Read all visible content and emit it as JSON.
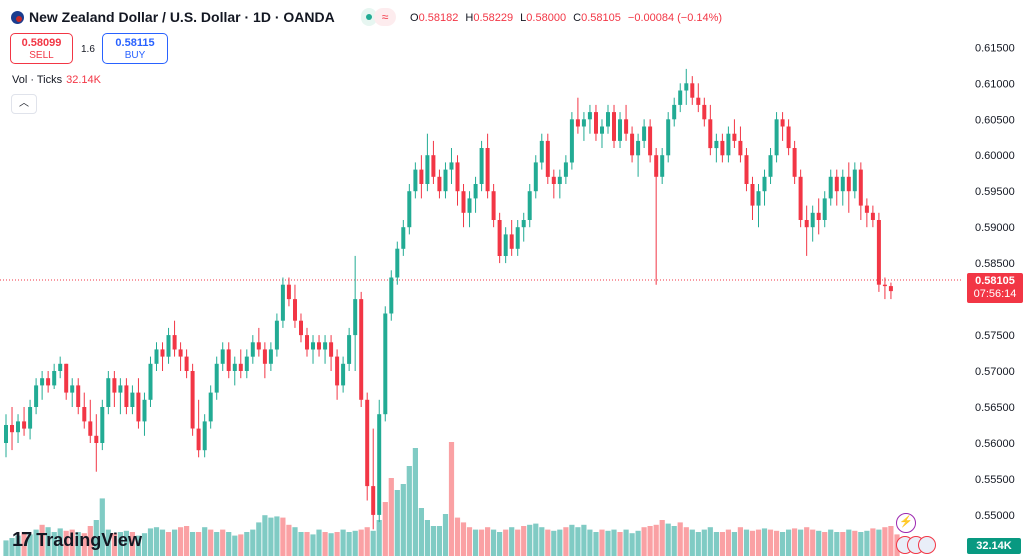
{
  "header": {
    "title": "New Zealand Dollar / U.S. Dollar · 1D · OANDA",
    "ohlc": {
      "o_label": "O",
      "o": "0.58182",
      "h_label": "H",
      "h": "0.58229",
      "l_label": "L",
      "l": "0.58000",
      "c_label": "C",
      "c": "0.58105",
      "change": "−0.00084 (−0.14%)"
    }
  },
  "trade": {
    "sell_price": "0.58099",
    "sell_label": "SELL",
    "spread": "1.6",
    "buy_price": "0.58115",
    "buy_label": "BUY"
  },
  "volume_indicator": {
    "label": "Vol · Ticks",
    "value": "32.14K"
  },
  "last_price": {
    "value": "0.58105",
    "countdown": "07:56:14"
  },
  "volume_axis_label": "32.14K",
  "branding": {
    "name": "TradingView"
  },
  "colors": {
    "up": "#22ab94",
    "down": "#f23645",
    "vol_up": "#80cbc4",
    "vol_down": "#faa1a4"
  },
  "chart_data": {
    "type": "candlestick",
    "y_ticks": [
      "0.61500",
      "0.61000",
      "0.60500",
      "0.60000",
      "0.59500",
      "0.59000",
      "0.58500",
      "0.58000",
      "0.57500",
      "0.57000",
      "0.56500",
      "0.56000",
      "0.55500",
      "0.55000"
    ],
    "ylim": [
      0.5447,
      0.6163
    ],
    "candles": [
      [
        0.56,
        0.564,
        0.558,
        0.5625
      ],
      [
        0.5625,
        0.565,
        0.559,
        0.5615
      ],
      [
        0.5615,
        0.564,
        0.56,
        0.563
      ],
      [
        0.563,
        0.565,
        0.561,
        0.562
      ],
      [
        0.562,
        0.566,
        0.5605,
        0.565
      ],
      [
        0.565,
        0.569,
        0.564,
        0.568
      ],
      [
        0.568,
        0.57,
        0.566,
        0.569
      ],
      [
        0.569,
        0.57,
        0.567,
        0.568
      ],
      [
        0.568,
        0.571,
        0.5675,
        0.57
      ],
      [
        0.57,
        0.572,
        0.569,
        0.571
      ],
      [
        0.571,
        0.571,
        0.566,
        0.567
      ],
      [
        0.567,
        0.569,
        0.565,
        0.568
      ],
      [
        0.568,
        0.569,
        0.564,
        0.565
      ],
      [
        0.565,
        0.567,
        0.562,
        0.563
      ],
      [
        0.563,
        0.566,
        0.56,
        0.561
      ],
      [
        0.561,
        0.564,
        0.556,
        0.56
      ],
      [
        0.56,
        0.566,
        0.559,
        0.565
      ],
      [
        0.565,
        0.57,
        0.564,
        0.569
      ],
      [
        0.569,
        0.57,
        0.565,
        0.567
      ],
      [
        0.567,
        0.569,
        0.564,
        0.568
      ],
      [
        0.568,
        0.569,
        0.564,
        0.565
      ],
      [
        0.565,
        0.568,
        0.564,
        0.567
      ],
      [
        0.567,
        0.569,
        0.562,
        0.563
      ],
      [
        0.563,
        0.567,
        0.561,
        0.566
      ],
      [
        0.566,
        0.572,
        0.565,
        0.571
      ],
      [
        0.571,
        0.574,
        0.57,
        0.573
      ],
      [
        0.573,
        0.574,
        0.57,
        0.572
      ],
      [
        0.572,
        0.576,
        0.571,
        0.575
      ],
      [
        0.575,
        0.577,
        0.572,
        0.573
      ],
      [
        0.573,
        0.574,
        0.57,
        0.572
      ],
      [
        0.572,
        0.573,
        0.569,
        0.57
      ],
      [
        0.57,
        0.571,
        0.561,
        0.562
      ],
      [
        0.562,
        0.566,
        0.558,
        0.559
      ],
      [
        0.559,
        0.564,
        0.558,
        0.563
      ],
      [
        0.563,
        0.568,
        0.562,
        0.567
      ],
      [
        0.567,
        0.572,
        0.566,
        0.571
      ],
      [
        0.571,
        0.574,
        0.57,
        0.573
      ],
      [
        0.573,
        0.574,
        0.569,
        0.57
      ],
      [
        0.57,
        0.572,
        0.568,
        0.571
      ],
      [
        0.571,
        0.573,
        0.569,
        0.57
      ],
      [
        0.57,
        0.573,
        0.569,
        0.572
      ],
      [
        0.572,
        0.575,
        0.571,
        0.574
      ],
      [
        0.574,
        0.576,
        0.572,
        0.573
      ],
      [
        0.573,
        0.574,
        0.569,
        0.571
      ],
      [
        0.571,
        0.574,
        0.57,
        0.573
      ],
      [
        0.573,
        0.578,
        0.572,
        0.577
      ],
      [
        0.577,
        0.583,
        0.576,
        0.582
      ],
      [
        0.582,
        0.583,
        0.579,
        0.58
      ],
      [
        0.58,
        0.582,
        0.576,
        0.577
      ],
      [
        0.577,
        0.578,
        0.574,
        0.575
      ],
      [
        0.575,
        0.576,
        0.572,
        0.573
      ],
      [
        0.573,
        0.575,
        0.571,
        0.574
      ],
      [
        0.574,
        0.575,
        0.572,
        0.573
      ],
      [
        0.573,
        0.575,
        0.571,
        0.574
      ],
      [
        0.574,
        0.575,
        0.57,
        0.572
      ],
      [
        0.572,
        0.573,
        0.566,
        0.568
      ],
      [
        0.568,
        0.572,
        0.567,
        0.571
      ],
      [
        0.571,
        0.576,
        0.57,
        0.575
      ],
      [
        0.575,
        0.586,
        0.57,
        0.58
      ],
      [
        0.58,
        0.581,
        0.565,
        0.566
      ],
      [
        0.566,
        0.567,
        0.552,
        0.554
      ],
      [
        0.554,
        0.562,
        0.548,
        0.55
      ],
      [
        0.55,
        0.566,
        0.549,
        0.564
      ],
      [
        0.564,
        0.579,
        0.563,
        0.578
      ],
      [
        0.578,
        0.584,
        0.577,
        0.583
      ],
      [
        0.583,
        0.588,
        0.582,
        0.587
      ],
      [
        0.587,
        0.591,
        0.586,
        0.59
      ],
      [
        0.59,
        0.596,
        0.589,
        0.595
      ],
      [
        0.595,
        0.599,
        0.594,
        0.598
      ],
      [
        0.598,
        0.6,
        0.594,
        0.596
      ],
      [
        0.596,
        0.603,
        0.595,
        0.6
      ],
      [
        0.6,
        0.602,
        0.596,
        0.597
      ],
      [
        0.597,
        0.598,
        0.594,
        0.595
      ],
      [
        0.595,
        0.599,
        0.594,
        0.598
      ],
      [
        0.598,
        0.601,
        0.596,
        0.599
      ],
      [
        0.599,
        0.6,
        0.593,
        0.595
      ],
      [
        0.595,
        0.596,
        0.59,
        0.592
      ],
      [
        0.592,
        0.595,
        0.59,
        0.594
      ],
      [
        0.594,
        0.597,
        0.592,
        0.596
      ],
      [
        0.596,
        0.602,
        0.595,
        0.601
      ],
      [
        0.601,
        0.603,
        0.594,
        0.595
      ],
      [
        0.595,
        0.596,
        0.59,
        0.591
      ],
      [
        0.591,
        0.592,
        0.585,
        0.586
      ],
      [
        0.586,
        0.59,
        0.585,
        0.589
      ],
      [
        0.589,
        0.591,
        0.586,
        0.587
      ],
      [
        0.587,
        0.591,
        0.586,
        0.59
      ],
      [
        0.59,
        0.592,
        0.588,
        0.591
      ],
      [
        0.591,
        0.596,
        0.59,
        0.595
      ],
      [
        0.595,
        0.6,
        0.594,
        0.599
      ],
      [
        0.599,
        0.603,
        0.598,
        0.602
      ],
      [
        0.602,
        0.603,
        0.596,
        0.597
      ],
      [
        0.597,
        0.598,
        0.594,
        0.596
      ],
      [
        0.596,
        0.598,
        0.594,
        0.597
      ],
      [
        0.597,
        0.6,
        0.596,
        0.599
      ],
      [
        0.599,
        0.606,
        0.598,
        0.605
      ],
      [
        0.605,
        0.608,
        0.603,
        0.604
      ],
      [
        0.604,
        0.606,
        0.602,
        0.605
      ],
      [
        0.605,
        0.607,
        0.603,
        0.606
      ],
      [
        0.606,
        0.607,
        0.602,
        0.603
      ],
      [
        0.603,
        0.605,
        0.601,
        0.604
      ],
      [
        0.604,
        0.607,
        0.603,
        0.606
      ],
      [
        0.606,
        0.607,
        0.601,
        0.602
      ],
      [
        0.602,
        0.606,
        0.601,
        0.605
      ],
      [
        0.605,
        0.607,
        0.602,
        0.603
      ],
      [
        0.603,
        0.604,
        0.599,
        0.6
      ],
      [
        0.6,
        0.603,
        0.597,
        0.602
      ],
      [
        0.602,
        0.605,
        0.601,
        0.604
      ],
      [
        0.604,
        0.605,
        0.599,
        0.6
      ],
      [
        0.6,
        0.601,
        0.582,
        0.597
      ],
      [
        0.597,
        0.601,
        0.596,
        0.6
      ],
      [
        0.6,
        0.606,
        0.599,
        0.605
      ],
      [
        0.605,
        0.608,
        0.604,
        0.607
      ],
      [
        0.607,
        0.61,
        0.606,
        0.609
      ],
      [
        0.609,
        0.612,
        0.607,
        0.61
      ],
      [
        0.61,
        0.611,
        0.607,
        0.608
      ],
      [
        0.608,
        0.61,
        0.606,
        0.607
      ],
      [
        0.607,
        0.608,
        0.604,
        0.605
      ],
      [
        0.605,
        0.607,
        0.6,
        0.601
      ],
      [
        0.601,
        0.603,
        0.599,
        0.602
      ],
      [
        0.602,
        0.603,
        0.599,
        0.6
      ],
      [
        0.6,
        0.604,
        0.599,
        0.603
      ],
      [
        0.603,
        0.605,
        0.601,
        0.602
      ],
      [
        0.602,
        0.604,
        0.599,
        0.6
      ],
      [
        0.6,
        0.601,
        0.595,
        0.596
      ],
      [
        0.596,
        0.597,
        0.591,
        0.593
      ],
      [
        0.593,
        0.596,
        0.59,
        0.595
      ],
      [
        0.595,
        0.598,
        0.593,
        0.597
      ],
      [
        0.597,
        0.601,
        0.596,
        0.6
      ],
      [
        0.6,
        0.606,
        0.599,
        0.605
      ],
      [
        0.605,
        0.606,
        0.602,
        0.604
      ],
      [
        0.604,
        0.605,
        0.6,
        0.601
      ],
      [
        0.601,
        0.602,
        0.596,
        0.597
      ],
      [
        0.597,
        0.598,
        0.59,
        0.591
      ],
      [
        0.591,
        0.593,
        0.586,
        0.59
      ],
      [
        0.59,
        0.593,
        0.588,
        0.592
      ],
      [
        0.592,
        0.594,
        0.589,
        0.591
      ],
      [
        0.591,
        0.595,
        0.59,
        0.594
      ],
      [
        0.594,
        0.598,
        0.593,
        0.597
      ],
      [
        0.597,
        0.598,
        0.593,
        0.595
      ],
      [
        0.595,
        0.598,
        0.593,
        0.597
      ],
      [
        0.597,
        0.599,
        0.592,
        0.595
      ],
      [
        0.595,
        0.599,
        0.594,
        0.598
      ],
      [
        0.598,
        0.599,
        0.591,
        0.593
      ],
      [
        0.593,
        0.594,
        0.59,
        0.592
      ],
      [
        0.592,
        0.593,
        0.59,
        0.591
      ],
      [
        0.591,
        0.592,
        0.581,
        0.582
      ],
      [
        0.582,
        0.583,
        0.58,
        0.5818
      ],
      [
        0.5818,
        0.5823,
        0.58,
        0.5811
      ]
    ],
    "volumes": [
      [
        0.13,
        1
      ],
      [
        0.15,
        1
      ],
      [
        0.17,
        1
      ],
      [
        0.2,
        0
      ],
      [
        0.18,
        1
      ],
      [
        0.22,
        1
      ],
      [
        0.26,
        0
      ],
      [
        0.24,
        1
      ],
      [
        0.2,
        1
      ],
      [
        0.23,
        1
      ],
      [
        0.21,
        0
      ],
      [
        0.22,
        0
      ],
      [
        0.2,
        1
      ],
      [
        0.19,
        0
      ],
      [
        0.25,
        0
      ],
      [
        0.3,
        1
      ],
      [
        0.48,
        1
      ],
      [
        0.22,
        1
      ],
      [
        0.19,
        0
      ],
      [
        0.2,
        1
      ],
      [
        0.21,
        1
      ],
      [
        0.2,
        0
      ],
      [
        0.17,
        1
      ],
      [
        0.19,
        1
      ],
      [
        0.23,
        1
      ],
      [
        0.24,
        1
      ],
      [
        0.22,
        1
      ],
      [
        0.2,
        0
      ],
      [
        0.22,
        1
      ],
      [
        0.24,
        0
      ],
      [
        0.25,
        0
      ],
      [
        0.2,
        1
      ],
      [
        0.2,
        0
      ],
      [
        0.24,
        1
      ],
      [
        0.22,
        0
      ],
      [
        0.2,
        1
      ],
      [
        0.22,
        0
      ],
      [
        0.2,
        1
      ],
      [
        0.17,
        1
      ],
      [
        0.18,
        0
      ],
      [
        0.2,
        1
      ],
      [
        0.22,
        1
      ],
      [
        0.28,
        1
      ],
      [
        0.34,
        1
      ],
      [
        0.32,
        1
      ],
      [
        0.33,
        1
      ],
      [
        0.32,
        0
      ],
      [
        0.26,
        0
      ],
      [
        0.24,
        1
      ],
      [
        0.2,
        1
      ],
      [
        0.2,
        0
      ],
      [
        0.18,
        1
      ],
      [
        0.22,
        1
      ],
      [
        0.2,
        0
      ],
      [
        0.19,
        1
      ],
      [
        0.2,
        0
      ],
      [
        0.22,
        1
      ],
      [
        0.2,
        1
      ],
      [
        0.21,
        1
      ],
      [
        0.22,
        0
      ],
      [
        0.24,
        0
      ],
      [
        0.21,
        1
      ],
      [
        0.3,
        1
      ],
      [
        0.45,
        0
      ],
      [
        0.65,
        0
      ],
      [
        0.55,
        1
      ],
      [
        0.6,
        1
      ],
      [
        0.75,
        1
      ],
      [
        0.9,
        1
      ],
      [
        0.4,
        1
      ],
      [
        0.3,
        1
      ],
      [
        0.25,
        1
      ],
      [
        0.25,
        1
      ],
      [
        0.35,
        1
      ],
      [
        0.95,
        0
      ],
      [
        0.32,
        0
      ],
      [
        0.28,
        0
      ],
      [
        0.24,
        0
      ],
      [
        0.22,
        1
      ],
      [
        0.22,
        0
      ],
      [
        0.24,
        0
      ],
      [
        0.22,
        1
      ],
      [
        0.2,
        1
      ],
      [
        0.22,
        0
      ],
      [
        0.24,
        1
      ],
      [
        0.22,
        0
      ],
      [
        0.25,
        0
      ],
      [
        0.26,
        1
      ],
      [
        0.27,
        1
      ],
      [
        0.24,
        1
      ],
      [
        0.22,
        0
      ],
      [
        0.21,
        1
      ],
      [
        0.22,
        1
      ],
      [
        0.24,
        0
      ],
      [
        0.26,
        1
      ],
      [
        0.24,
        1
      ],
      [
        0.26,
        1
      ],
      [
        0.22,
        1
      ],
      [
        0.2,
        1
      ],
      [
        0.22,
        0
      ],
      [
        0.21,
        1
      ],
      [
        0.22,
        1
      ],
      [
        0.2,
        0
      ],
      [
        0.22,
        1
      ],
      [
        0.19,
        1
      ],
      [
        0.21,
        1
      ],
      [
        0.24,
        0
      ],
      [
        0.25,
        0
      ],
      [
        0.26,
        0
      ],
      [
        0.3,
        0
      ],
      [
        0.27,
        1
      ],
      [
        0.25,
        1
      ],
      [
        0.28,
        0
      ],
      [
        0.24,
        0
      ],
      [
        0.22,
        1
      ],
      [
        0.2,
        1
      ],
      [
        0.22,
        1
      ],
      [
        0.24,
        1
      ],
      [
        0.2,
        1
      ],
      [
        0.2,
        0
      ],
      [
        0.22,
        0
      ],
      [
        0.2,
        1
      ],
      [
        0.24,
        0
      ],
      [
        0.22,
        1
      ],
      [
        0.21,
        0
      ],
      [
        0.22,
        0
      ],
      [
        0.23,
        1
      ],
      [
        0.22,
        0
      ],
      [
        0.21,
        0
      ],
      [
        0.2,
        1
      ],
      [
        0.22,
        1
      ],
      [
        0.23,
        0
      ],
      [
        0.22,
        1
      ],
      [
        0.24,
        0
      ],
      [
        0.22,
        0
      ],
      [
        0.21,
        1
      ],
      [
        0.2,
        0
      ],
      [
        0.22,
        1
      ],
      [
        0.2,
        1
      ],
      [
        0.2,
        0
      ],
      [
        0.22,
        1
      ],
      [
        0.21,
        0
      ],
      [
        0.2,
        1
      ],
      [
        0.21,
        1
      ],
      [
        0.23,
        0
      ],
      [
        0.22,
        1
      ],
      [
        0.24,
        0
      ],
      [
        0.25,
        0
      ],
      [
        0.18,
        0
      ]
    ]
  }
}
